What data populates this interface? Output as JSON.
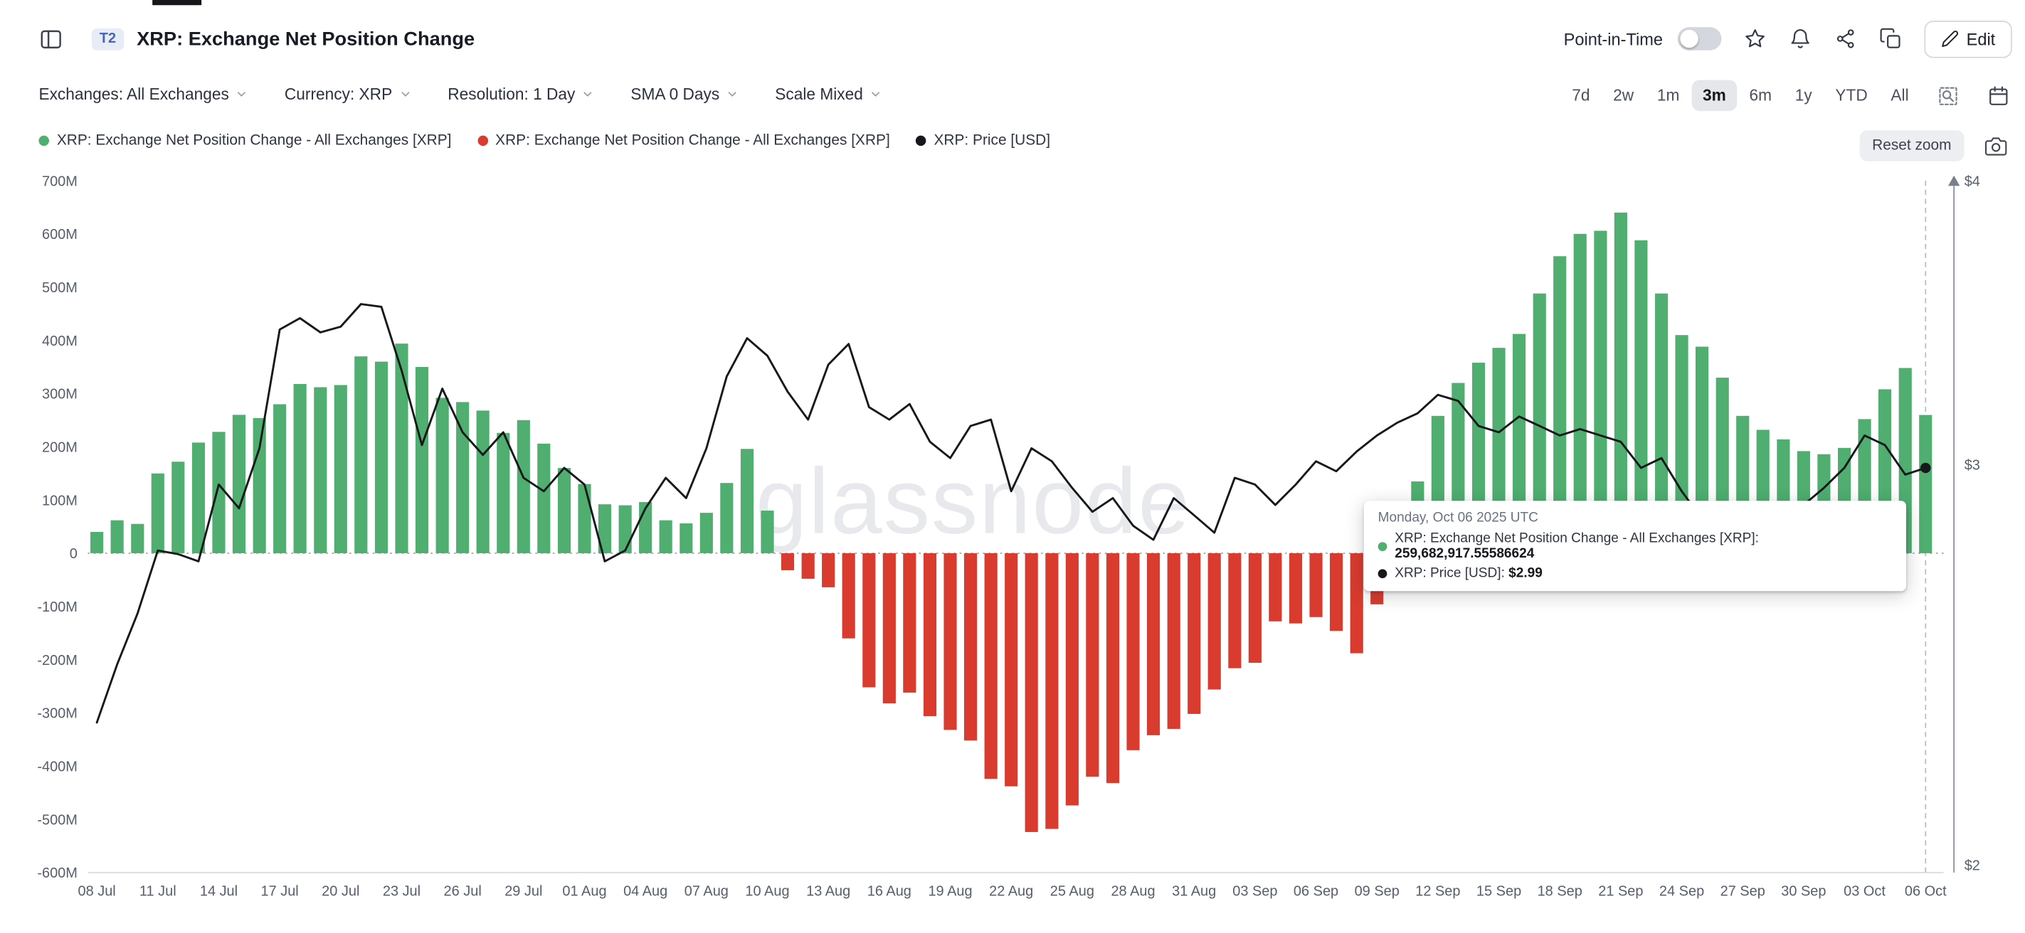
{
  "header": {
    "badge": "T2",
    "title": "XRP: Exchange Net Position Change",
    "point_in_time_label": "Point-in-Time",
    "point_in_time_enabled": false,
    "edit_label": "Edit"
  },
  "toolbar": {
    "dropdowns": [
      {
        "label": "Exchanges: All Exchanges"
      },
      {
        "label": "Currency: XRP"
      },
      {
        "label": "Resolution: 1 Day"
      },
      {
        "label": "SMA 0 Days"
      },
      {
        "label": "Scale Mixed"
      }
    ],
    "ranges": [
      "7d",
      "2w",
      "1m",
      "3m",
      "6m",
      "1y",
      "YTD",
      "All"
    ],
    "active_range": "3m"
  },
  "legend": {
    "items": [
      {
        "color": "#4fae70",
        "label": "XRP: Exchange Net Position Change - All Exchanges [XRP]"
      },
      {
        "color": "#d93b2e",
        "label": "XRP: Exchange Net Position Change - All Exchanges [XRP]"
      },
      {
        "color": "#16181b",
        "label": "XRP: Price [USD]"
      }
    ],
    "reset_zoom_label": "Reset zoom"
  },
  "watermark": "glassnode",
  "tooltip": {
    "date": "Monday, Oct 06 2025 UTC",
    "rows": [
      {
        "color": "#4fae70",
        "label": "XRP: Exchange Net Position Change - All Exchanges [XRP]:",
        "value": "259,682,917.55586624"
      },
      {
        "color": "#16181b",
        "label": "XRP: Price [USD]:",
        "value": "$2.99"
      }
    ]
  },
  "chart_data": {
    "type": "bar+line",
    "title": "XRP: Exchange Net Position Change",
    "x_tick_labels": [
      "08 Jul",
      "11 Jul",
      "14 Jul",
      "17 Jul",
      "20 Jul",
      "23 Jul",
      "26 Jul",
      "29 Jul",
      "01 Aug",
      "04 Aug",
      "07 Aug",
      "10 Aug",
      "13 Aug",
      "16 Aug",
      "19 Aug",
      "22 Aug",
      "25 Aug",
      "28 Aug",
      "31 Aug",
      "03 Sep",
      "06 Sep",
      "09 Sep",
      "12 Sep",
      "15 Sep",
      "18 Sep",
      "21 Sep",
      "24 Sep",
      "27 Sep",
      "30 Sep",
      "03 Oct",
      "06 Oct"
    ],
    "x_resolution": "1 Day",
    "left_axis": {
      "ticks": [
        "700M",
        "600M",
        "500M",
        "400M",
        "300M",
        "200M",
        "100M",
        "0",
        "-100M",
        "-200M",
        "-300M",
        "-400M",
        "-500M",
        "-600M"
      ],
      "min": -600000000,
      "max": 700000000,
      "unit": "XRP"
    },
    "right_axis": {
      "ticks": [
        "$4",
        "$3",
        "$2"
      ],
      "min": 2,
      "max": 4,
      "scale": "log",
      "unit": "USD"
    },
    "series": [
      {
        "name": "XRP: Exchange Net Position Change - All Exchanges [XRP]",
        "type": "bar",
        "unit": "millions of XRP",
        "positive_color": "#4fae70",
        "negative_color": "#d93b2e",
        "values": [
          40,
          62,
          55,
          150,
          172,
          208,
          228,
          260,
          254,
          280,
          318,
          312,
          316,
          370,
          360,
          394,
          350,
          292,
          284,
          268,
          226,
          250,
          206,
          160,
          130,
          92,
          90,
          96,
          62,
          56,
          76,
          132,
          196,
          80,
          -32,
          -48,
          -64,
          -160,
          -252,
          -282,
          -262,
          -306,
          -332,
          -352,
          -424,
          -438,
          -524,
          -518,
          -474,
          -420,
          -432,
          -370,
          -342,
          -330,
          -302,
          -256,
          -216,
          -206,
          -128,
          -132,
          -120,
          -146,
          -188,
          -96,
          -42,
          135,
          258,
          320,
          358,
          386,
          412,
          488,
          558,
          600,
          606,
          640,
          588,
          488,
          410,
          388,
          330,
          258,
          232,
          214,
          192,
          186,
          198,
          252,
          308,
          348,
          259.68
        ]
      },
      {
        "name": "XRP: Price [USD]",
        "type": "line",
        "unit": "USD",
        "color": "#16181b",
        "values": [
          2.31,
          2.45,
          2.58,
          2.75,
          2.74,
          2.72,
          2.94,
          2.87,
          3.05,
          3.44,
          3.48,
          3.43,
          3.45,
          3.53,
          3.52,
          3.3,
          3.06,
          3.24,
          3.1,
          3.03,
          3.1,
          2.96,
          2.92,
          2.99,
          2.94,
          2.72,
          2.75,
          2.87,
          2.96,
          2.9,
          3.05,
          3.28,
          3.41,
          3.35,
          3.23,
          3.14,
          3.32,
          3.39,
          3.18,
          3.14,
          3.19,
          3.07,
          3.02,
          3.12,
          3.14,
          2.92,
          3.05,
          3.01,
          2.93,
          2.86,
          2.9,
          2.82,
          2.78,
          2.9,
          2.85,
          2.8,
          2.96,
          2.94,
          2.88,
          2.94,
          3.01,
          2.98,
          3.04,
          3.09,
          3.13,
          3.16,
          3.22,
          3.2,
          3.12,
          3.1,
          3.15,
          3.12,
          3.09,
          3.11,
          3.09,
          3.07,
          2.99,
          3.02,
          2.92,
          2.84,
          2.82,
          2.8,
          2.77,
          2.82,
          2.88,
          2.93,
          2.99,
          3.09,
          3.06,
          2.97,
          2.99
        ]
      }
    ],
    "highlighted_point": {
      "date": "Monday, Oct 06 2025 UTC",
      "net_position_change": "259,682,917.55586624",
      "price": "$2.99"
    }
  }
}
